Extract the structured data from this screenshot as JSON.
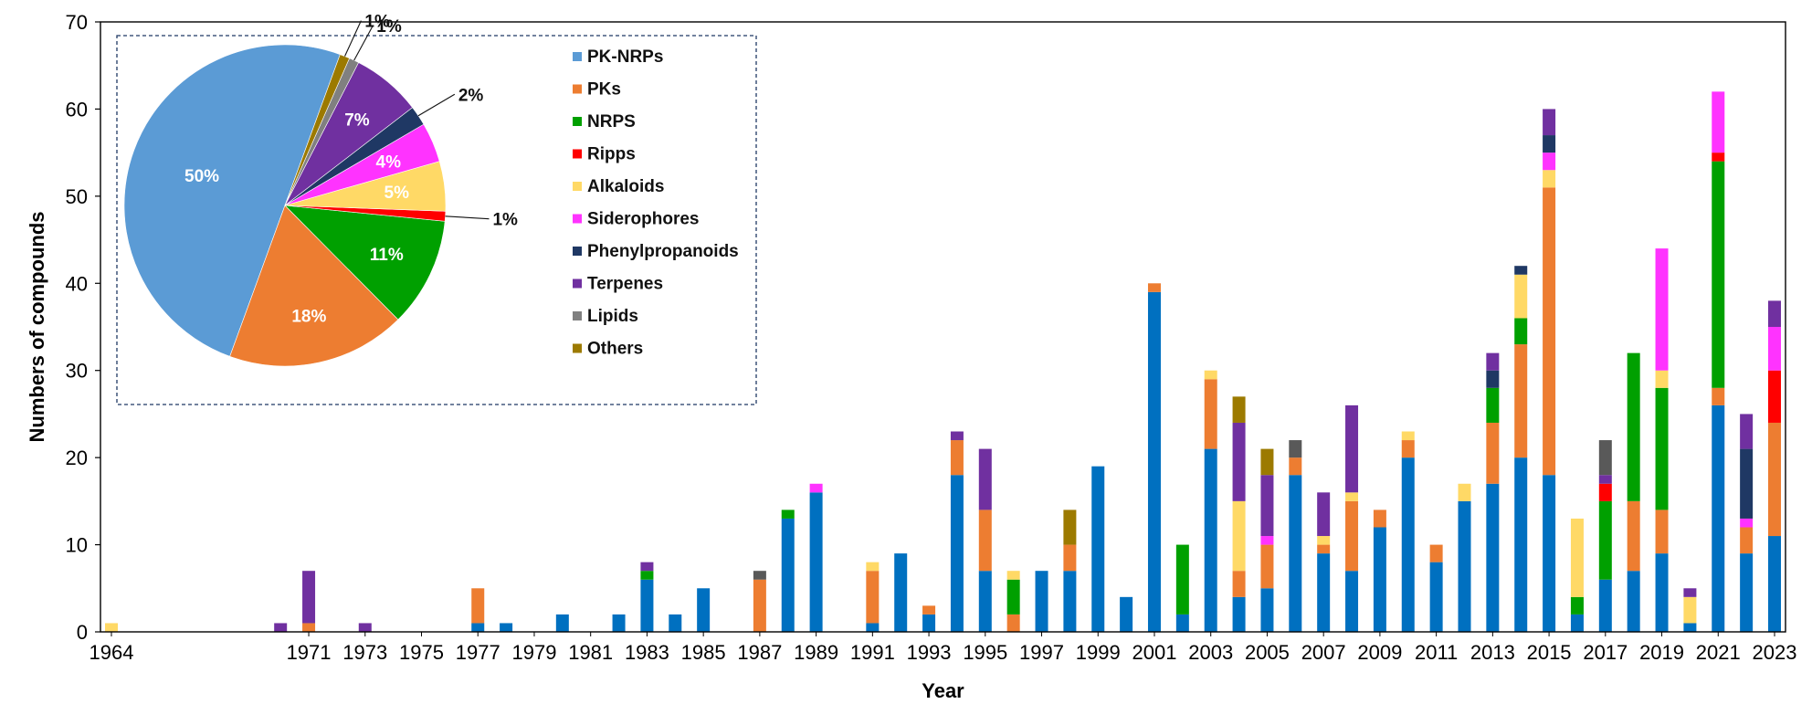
{
  "chart_data": [
    {
      "type": "bar",
      "stacked": true,
      "xlabel": "Year",
      "ylabel": "Numbers of compounds",
      "ylim": [
        0,
        70
      ],
      "yticks": [
        0,
        10,
        20,
        30,
        40,
        50,
        60,
        70
      ],
      "grid": false,
      "categories": [
        "1964",
        "1970",
        "1971",
        "1973",
        "1977",
        "1978",
        "1980",
        "1982",
        "1983",
        "1984",
        "1985",
        "1987",
        "1988",
        "1989",
        "1991",
        "1992",
        "1993",
        "1994",
        "1995",
        "1996",
        "1997",
        "1998",
        "1999",
        "2000",
        "2001",
        "2002",
        "2003",
        "2004",
        "2005",
        "2006",
        "2007",
        "2008",
        "2009",
        "2010",
        "2011",
        "2012",
        "2013",
        "2014",
        "2015",
        "2016",
        "2017",
        "2018",
        "2019",
        "2020",
        "2021",
        "2022",
        "2023"
      ],
      "xtick_labels": [
        "1964",
        "1971",
        "1973",
        "1975",
        "1977",
        "1979",
        "1981",
        "1983",
        "1985",
        "1987",
        "1989",
        "1991",
        "1993",
        "1995",
        "1997",
        "1999",
        "2001",
        "2003",
        "2005",
        "2007",
        "2009",
        "2011",
        "2013",
        "2015",
        "2017",
        "2019",
        "2021",
        "2023"
      ],
      "series": [
        {
          "name": "PK-NRPs",
          "color": "#0070C0",
          "values": [
            0,
            0,
            0,
            0,
            1,
            1,
            2,
            2,
            6,
            2,
            5,
            0,
            13,
            16,
            1,
            9,
            2,
            18,
            7,
            0,
            7,
            7,
            19,
            4,
            39,
            2,
            21,
            4,
            5,
            18,
            9,
            7,
            12,
            20,
            8,
            15,
            17,
            20,
            18,
            2,
            6,
            7,
            9,
            1,
            26,
            9,
            11
          ]
        },
        {
          "name": "PKs",
          "color": "#ED7D31",
          "values": [
            0,
            0,
            1,
            0,
            4,
            0,
            0,
            0,
            0,
            0,
            0,
            6,
            0,
            0,
            6,
            0,
            1,
            4,
            7,
            2,
            0,
            3,
            0,
            0,
            1,
            0,
            8,
            3,
            5,
            2,
            1,
            8,
            2,
            2,
            2,
            0,
            7,
            13,
            33,
            0,
            0,
            8,
            5,
            0,
            2,
            3,
            13
          ]
        },
        {
          "name": "NRPS",
          "color": "#00A000",
          "values": [
            0,
            0,
            0,
            0,
            0,
            0,
            0,
            0,
            1,
            0,
            0,
            0,
            1,
            0,
            0,
            0,
            0,
            0,
            0,
            4,
            0,
            0,
            0,
            0,
            0,
            8,
            0,
            0,
            0,
            0,
            0,
            0,
            0,
            0,
            0,
            0,
            4,
            3,
            0,
            2,
            9,
            17,
            14,
            0,
            26,
            0,
            0
          ]
        },
        {
          "name": "Ripps",
          "color": "#FF0000",
          "values": [
            0,
            0,
            0,
            0,
            0,
            0,
            0,
            0,
            0,
            0,
            0,
            0,
            0,
            0,
            0,
            0,
            0,
            0,
            0,
            0,
            0,
            0,
            0,
            0,
            0,
            0,
            0,
            0,
            0,
            0,
            0,
            0,
            0,
            0,
            0,
            0,
            0,
            0,
            0,
            0,
            2,
            0,
            0,
            0,
            1,
            0,
            6
          ]
        },
        {
          "name": "Alkaloids",
          "color": "#FFD966",
          "values": [
            1,
            0,
            0,
            0,
            0,
            0,
            0,
            0,
            0,
            0,
            0,
            0,
            0,
            0,
            1,
            0,
            0,
            0,
            0,
            1,
            0,
            0,
            0,
            0,
            0,
            0,
            1,
            8,
            0,
            0,
            1,
            1,
            0,
            1,
            0,
            2,
            0,
            5,
            2,
            9,
            0,
            0,
            2,
            3,
            0,
            0,
            0
          ]
        },
        {
          "name": "Siderophores",
          "color": "#FF33FF",
          "values": [
            0,
            0,
            0,
            0,
            0,
            0,
            0,
            0,
            0,
            0,
            0,
            0,
            0,
            1,
            0,
            0,
            0,
            0,
            0,
            0,
            0,
            0,
            0,
            0,
            0,
            0,
            0,
            0,
            1,
            0,
            0,
            0,
            0,
            0,
            0,
            0,
            0,
            0,
            2,
            0,
            0,
            0,
            14,
            0,
            7,
            1,
            5
          ]
        },
        {
          "name": "Phenylpropanoids",
          "color": "#1F3864",
          "values": [
            0,
            0,
            0,
            0,
            0,
            0,
            0,
            0,
            0,
            0,
            0,
            0,
            0,
            0,
            0,
            0,
            0,
            0,
            0,
            0,
            0,
            0,
            0,
            0,
            0,
            0,
            0,
            0,
            0,
            0,
            0,
            0,
            0,
            0,
            0,
            0,
            2,
            1,
            2,
            0,
            0,
            0,
            0,
            0,
            0,
            8,
            0
          ]
        },
        {
          "name": "Terpenes",
          "color": "#7030A0",
          "values": [
            0,
            1,
            6,
            1,
            0,
            0,
            0,
            0,
            1,
            0,
            0,
            0,
            0,
            0,
            0,
            0,
            0,
            1,
            7,
            0,
            0,
            0,
            0,
            0,
            0,
            0,
            0,
            9,
            7,
            0,
            5,
            10,
            0,
            0,
            0,
            0,
            2,
            0,
            3,
            0,
            1,
            0,
            0,
            1,
            0,
            4,
            3
          ]
        },
        {
          "name": "Lipids",
          "color": "#595959",
          "values": [
            0,
            0,
            0,
            0,
            0,
            0,
            0,
            0,
            0,
            0,
            0,
            1,
            0,
            0,
            0,
            0,
            0,
            0,
            0,
            0,
            0,
            0,
            0,
            0,
            0,
            0,
            0,
            0,
            0,
            2,
            0,
            0,
            0,
            0,
            0,
            0,
            0,
            0,
            0,
            0,
            4,
            0,
            0,
            0,
            0,
            0,
            0
          ]
        },
        {
          "name": "Others",
          "color": "#9C7A00",
          "values": [
            0,
            0,
            0,
            0,
            0,
            0,
            0,
            0,
            0,
            0,
            0,
            0,
            0,
            0,
            0,
            0,
            0,
            0,
            0,
            0,
            0,
            4,
            0,
            0,
            0,
            0,
            0,
            3,
            3,
            0,
            0,
            0,
            0,
            0,
            0,
            0,
            0,
            0,
            0,
            0,
            0,
            0,
            0,
            0,
            0,
            0,
            0
          ]
        }
      ]
    },
    {
      "type": "pie",
      "legend_position": "right",
      "slices": [
        {
          "name": "PK-NRPs",
          "value": 50,
          "label": "50%",
          "color": "#5B9BD5"
        },
        {
          "name": "PKs",
          "value": 18,
          "label": "18%",
          "color": "#ED7D31"
        },
        {
          "name": "NRPS",
          "value": 11,
          "label": "11%",
          "color": "#00A000"
        },
        {
          "name": "Ripps",
          "value": 1,
          "label": "1%",
          "color": "#FF0000"
        },
        {
          "name": "Alkaloids",
          "value": 5,
          "label": "5%",
          "color": "#FFD966"
        },
        {
          "name": "Siderophores",
          "value": 4,
          "label": "4%",
          "color": "#FF33FF"
        },
        {
          "name": "Phenylpropanoids",
          "value": 2,
          "label": "2%",
          "color": "#1F3864"
        },
        {
          "name": "Terpenes",
          "value": 7,
          "label": "7%",
          "color": "#7030A0"
        },
        {
          "name": "Lipids",
          "value": 1,
          "label": "1%",
          "color": "#808080"
        },
        {
          "name": "Others",
          "value": 1,
          "label": "1%",
          "color": "#9C7A00"
        }
      ],
      "legend": [
        "PK-NRPs",
        "PKs",
        "NRPS",
        "Ripps",
        "Alkaloids",
        "Siderophores",
        "Phenylpropanoids",
        "Terpenes",
        "Lipids",
        "Others"
      ]
    }
  ]
}
